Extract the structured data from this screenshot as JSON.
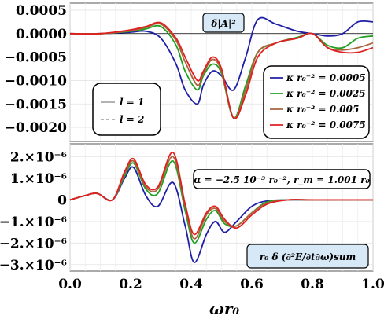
{
  "chart_data": [
    {
      "type": "line",
      "annotation": "δ|A|²",
      "xlim": [
        0,
        1.0
      ],
      "ylim": [
        -0.0023,
        0.00065
      ],
      "yticks": [
        "0.0005",
        "0.0000",
        "−0.0005",
        "−0.0010",
        "−0.0015",
        "−0.0020"
      ],
      "ytick_values": [
        0.0005,
        0,
        -0.0005,
        -0.001,
        -0.0015,
        -0.002
      ],
      "grid": true,
      "legend_style": {
        "position": "left",
        "entries": [
          {
            "label": "l = 1",
            "dash": "solid",
            "color": "#9a9a9a"
          },
          {
            "label": "l = 2",
            "dash": "dashed",
            "color": "#9a9a9a"
          }
        ]
      },
      "legend_series": {
        "position": "bottom-right",
        "entries": [
          {
            "label": "κ r₀⁻² = 0.0005",
            "color": "#1f1fa8"
          },
          {
            "label": "κ r₀⁻² = 0.0025",
            "color": "#22a022"
          },
          {
            "label": "κ r₀⁻² = 0.005",
            "color": "#a8643c"
          },
          {
            "label": "κ r₀⁻² = 0.0075",
            "color": "#e02020"
          }
        ]
      },
      "series": [
        {
          "name": "κ r₀⁻² = 0.0005",
          "color": "#1f1fa8",
          "x": [
            0,
            0.1,
            0.2,
            0.25,
            0.3,
            0.35,
            0.38,
            0.42,
            0.44,
            0.47,
            0.5,
            0.54,
            0.58,
            0.62,
            0.68,
            0.75,
            0.8,
            0.85,
            0.9,
            0.95,
            1.0
          ],
          "y": [
            0,
            0,
            3e-05,
            5e-05,
            -0.0001,
            -0.00065,
            -0.0012,
            -0.0015,
            -0.0011,
            -0.0008,
            -0.0009,
            -0.0012,
            -0.0005,
            0.0003,
            0.0002,
            5e-05,
            0,
            -5e-05,
            0,
            0.00025,
            0.00025
          ]
        },
        {
          "name": "κ r₀⁻² = 0.0025",
          "color": "#22a022",
          "x": [
            0,
            0.1,
            0.2,
            0.25,
            0.3,
            0.35,
            0.38,
            0.42,
            0.44,
            0.47,
            0.5,
            0.54,
            0.58,
            0.62,
            0.68,
            0.75,
            0.8,
            0.85,
            0.9,
            0.95,
            1.0
          ],
          "y": [
            0,
            0,
            5e-05,
            0.0001,
            0.00015,
            -0.00025,
            -0.0008,
            -0.0012,
            -0.0009,
            -0.00065,
            -0.00085,
            -0.0018,
            -0.0011,
            -0.0004,
            -0.0002,
            -8e-05,
            0,
            -0.00025,
            -0.0003,
            -0.0001,
            -5e-05
          ]
        },
        {
          "name": "κ r₀⁻² = 0.005",
          "color": "#a8643c",
          "x": [
            0,
            0.1,
            0.2,
            0.25,
            0.3,
            0.35,
            0.38,
            0.42,
            0.44,
            0.47,
            0.5,
            0.54,
            0.58,
            0.62,
            0.68,
            0.75,
            0.8,
            0.85,
            0.9,
            0.95,
            1.0
          ],
          "y": [
            0,
            0,
            6e-05,
            0.00013,
            0.0002,
            -0.00015,
            -0.0006,
            -0.0011,
            -0.00085,
            -0.00055,
            -0.0008,
            -0.0018,
            -0.0012,
            -0.0004,
            -0.0002,
            -0.0001,
            0,
            -0.0003,
            -0.00035,
            -0.0003,
            -0.0002
          ]
        },
        {
          "name": "κ r₀⁻² = 0.0075",
          "color": "#e02020",
          "x": [
            0,
            0.1,
            0.2,
            0.25,
            0.3,
            0.35,
            0.38,
            0.42,
            0.44,
            0.47,
            0.5,
            0.54,
            0.58,
            0.62,
            0.68,
            0.75,
            0.8,
            0.85,
            0.9,
            0.95,
            1.0
          ],
          "y": [
            0,
            0,
            8e-05,
            0.00015,
            0.00023,
            -0.0001,
            -0.0005,
            -0.001,
            -0.0008,
            -0.0005,
            -0.00075,
            -0.0018,
            -0.0013,
            -0.0005,
            -0.0002,
            -0.0001,
            0,
            -0.0003,
            -0.0004,
            -0.0004,
            -0.0003
          ]
        }
      ]
    },
    {
      "type": "line",
      "annotation_params": "α = −2.5 10⁻³ r₀⁻², r_m = 1.001 r₀",
      "annotation_quantity": "r₀ δ (∂²E/∂t∂ω)sum",
      "xlabel": "ωr₀",
      "xlim": [
        0,
        1.0
      ],
      "xticks": [
        "0.0",
        "0.2",
        "0.4",
        "0.6",
        "0.8",
        "1.0"
      ],
      "ylim": [
        -3.3e-06,
        2.6e-06
      ],
      "yticks": [
        "2.×10⁻⁶",
        "1.×10⁻⁶",
        "0",
        "−1.×10⁻⁶",
        "−2.×10⁻⁶",
        "−3.×10⁻⁶"
      ],
      "ytick_values": [
        2e-06,
        1e-06,
        0,
        -1e-06,
        -2e-06,
        -3e-06
      ],
      "grid": true,
      "series": [
        {
          "name": "κ r₀⁻² = 0.0005",
          "color": "#1f1fa8",
          "x": [
            0,
            0.05,
            0.09,
            0.14,
            0.18,
            0.21,
            0.25,
            0.29,
            0.34,
            0.38,
            0.41,
            0.45,
            0.48,
            0.51,
            0.55,
            0.6,
            0.65,
            0.72,
            0.8,
            1.0
          ],
          "y": [
            0,
            2e-07,
            3e-07,
            0,
            1e-06,
            1.5e-06,
            2e-07,
            -3e-07,
            8e-07,
            -1.2e-06,
            -2.9e-06,
            -1.6e-06,
            -1e-06,
            -1.5e-06,
            -1e-06,
            -3e-07,
            -5e-08,
            0,
            0,
            0
          ]
        },
        {
          "name": "κ r₀⁻² = 0.0025",
          "color": "#22a022",
          "x": [
            0,
            0.05,
            0.09,
            0.14,
            0.18,
            0.21,
            0.25,
            0.29,
            0.34,
            0.38,
            0.41,
            0.45,
            0.48,
            0.51,
            0.55,
            0.6,
            0.65,
            0.72,
            0.8,
            1.0
          ],
          "y": [
            0,
            2e-07,
            3e-07,
            0,
            1.1e-06,
            1.7e-06,
            5e-07,
            3e-07,
            1.8e-06,
            -5e-07,
            -2e-06,
            -9e-07,
            -5e-07,
            -1.1e-06,
            -1.2e-06,
            -6e-07,
            -1e-07,
            0,
            0,
            0
          ]
        },
        {
          "name": "κ r₀⁻² = 0.005",
          "color": "#a8643c",
          "x": [
            0,
            0.05,
            0.09,
            0.14,
            0.18,
            0.21,
            0.25,
            0.29,
            0.34,
            0.38,
            0.41,
            0.45,
            0.48,
            0.51,
            0.55,
            0.6,
            0.65,
            0.72,
            0.8,
            1.0
          ],
          "y": [
            0,
            2e-07,
            3e-07,
            0,
            1.2e-06,
            1.8e-06,
            6e-07,
            5e-07,
            2e-06,
            -3e-07,
            -1.8e-06,
            -7e-07,
            -4e-07,
            -1e-06,
            -1.2e-06,
            -6e-07,
            -1.5e-07,
            0,
            0,
            0
          ]
        },
        {
          "name": "κ r₀⁻² = 0.0075",
          "color": "#e02020",
          "x": [
            0,
            0.05,
            0.09,
            0.14,
            0.18,
            0.21,
            0.25,
            0.29,
            0.34,
            0.38,
            0.41,
            0.45,
            0.48,
            0.51,
            0.55,
            0.6,
            0.65,
            0.72,
            0.8,
            1.0
          ],
          "y": [
            0,
            2e-07,
            3e-07,
            0,
            1.3e-06,
            1.9e-06,
            7e-07,
            6e-07,
            2.2e-06,
            -2e-07,
            -1.6e-06,
            -6e-07,
            -3e-07,
            -9e-07,
            -1.3e-06,
            -7e-07,
            -2e-07,
            0,
            0,
            0
          ]
        }
      ]
    }
  ]
}
